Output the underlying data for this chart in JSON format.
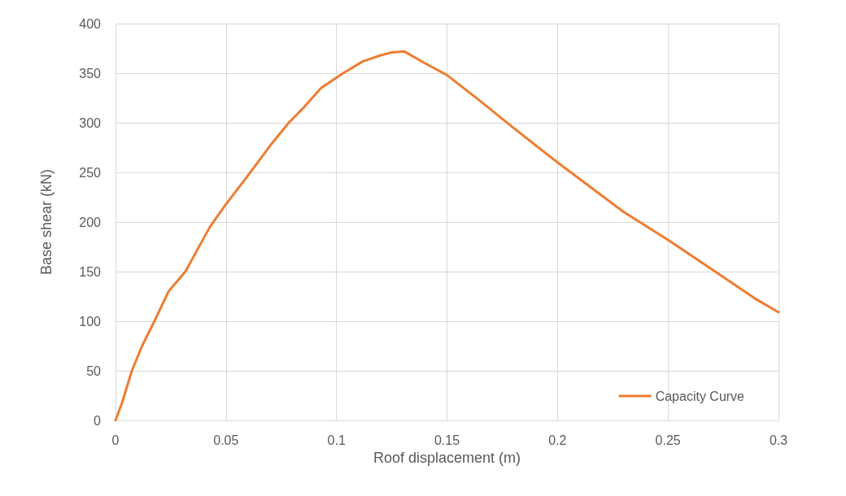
{
  "chart_data": {
    "type": "line",
    "xlabel": "Roof displacement (m)",
    "ylabel": "Base shear (kN)",
    "x": [
      0,
      0.003,
      0.0074,
      0.012,
      0.0176,
      0.024,
      0.0316,
      0.0427,
      0.05,
      0.06,
      0.07,
      0.0784,
      0.085,
      0.093,
      0.103,
      0.112,
      0.12,
      0.125,
      0.1306,
      0.14,
      0.15,
      0.165,
      0.18,
      0.2,
      0.215,
      0.23,
      0.25,
      0.27,
      0.29,
      0.3
    ],
    "series": [
      {
        "name": "Capacity Curve",
        "color": "#ed7d31",
        "values": [
          0,
          18,
          50,
          75,
          100,
          130,
          150,
          195,
          218,
          247,
          277,
          300,
          315,
          335,
          350,
          362,
          368,
          371,
          372,
          360,
          348,
          322,
          295,
          260,
          235,
          210,
          182,
          152,
          122,
          109
        ]
      }
    ],
    "xlim": [
      0,
      0.3
    ],
    "xticks": [
      0,
      0.05,
      0.1,
      0.15,
      0.2,
      0.25,
      0.3
    ],
    "ylim": [
      0,
      400
    ],
    "yticks": [
      0,
      50,
      100,
      150,
      200,
      250,
      300,
      350,
      400
    ],
    "grid": true,
    "legend": "bottom right",
    "marker": "none",
    "line_style": "solid"
  }
}
